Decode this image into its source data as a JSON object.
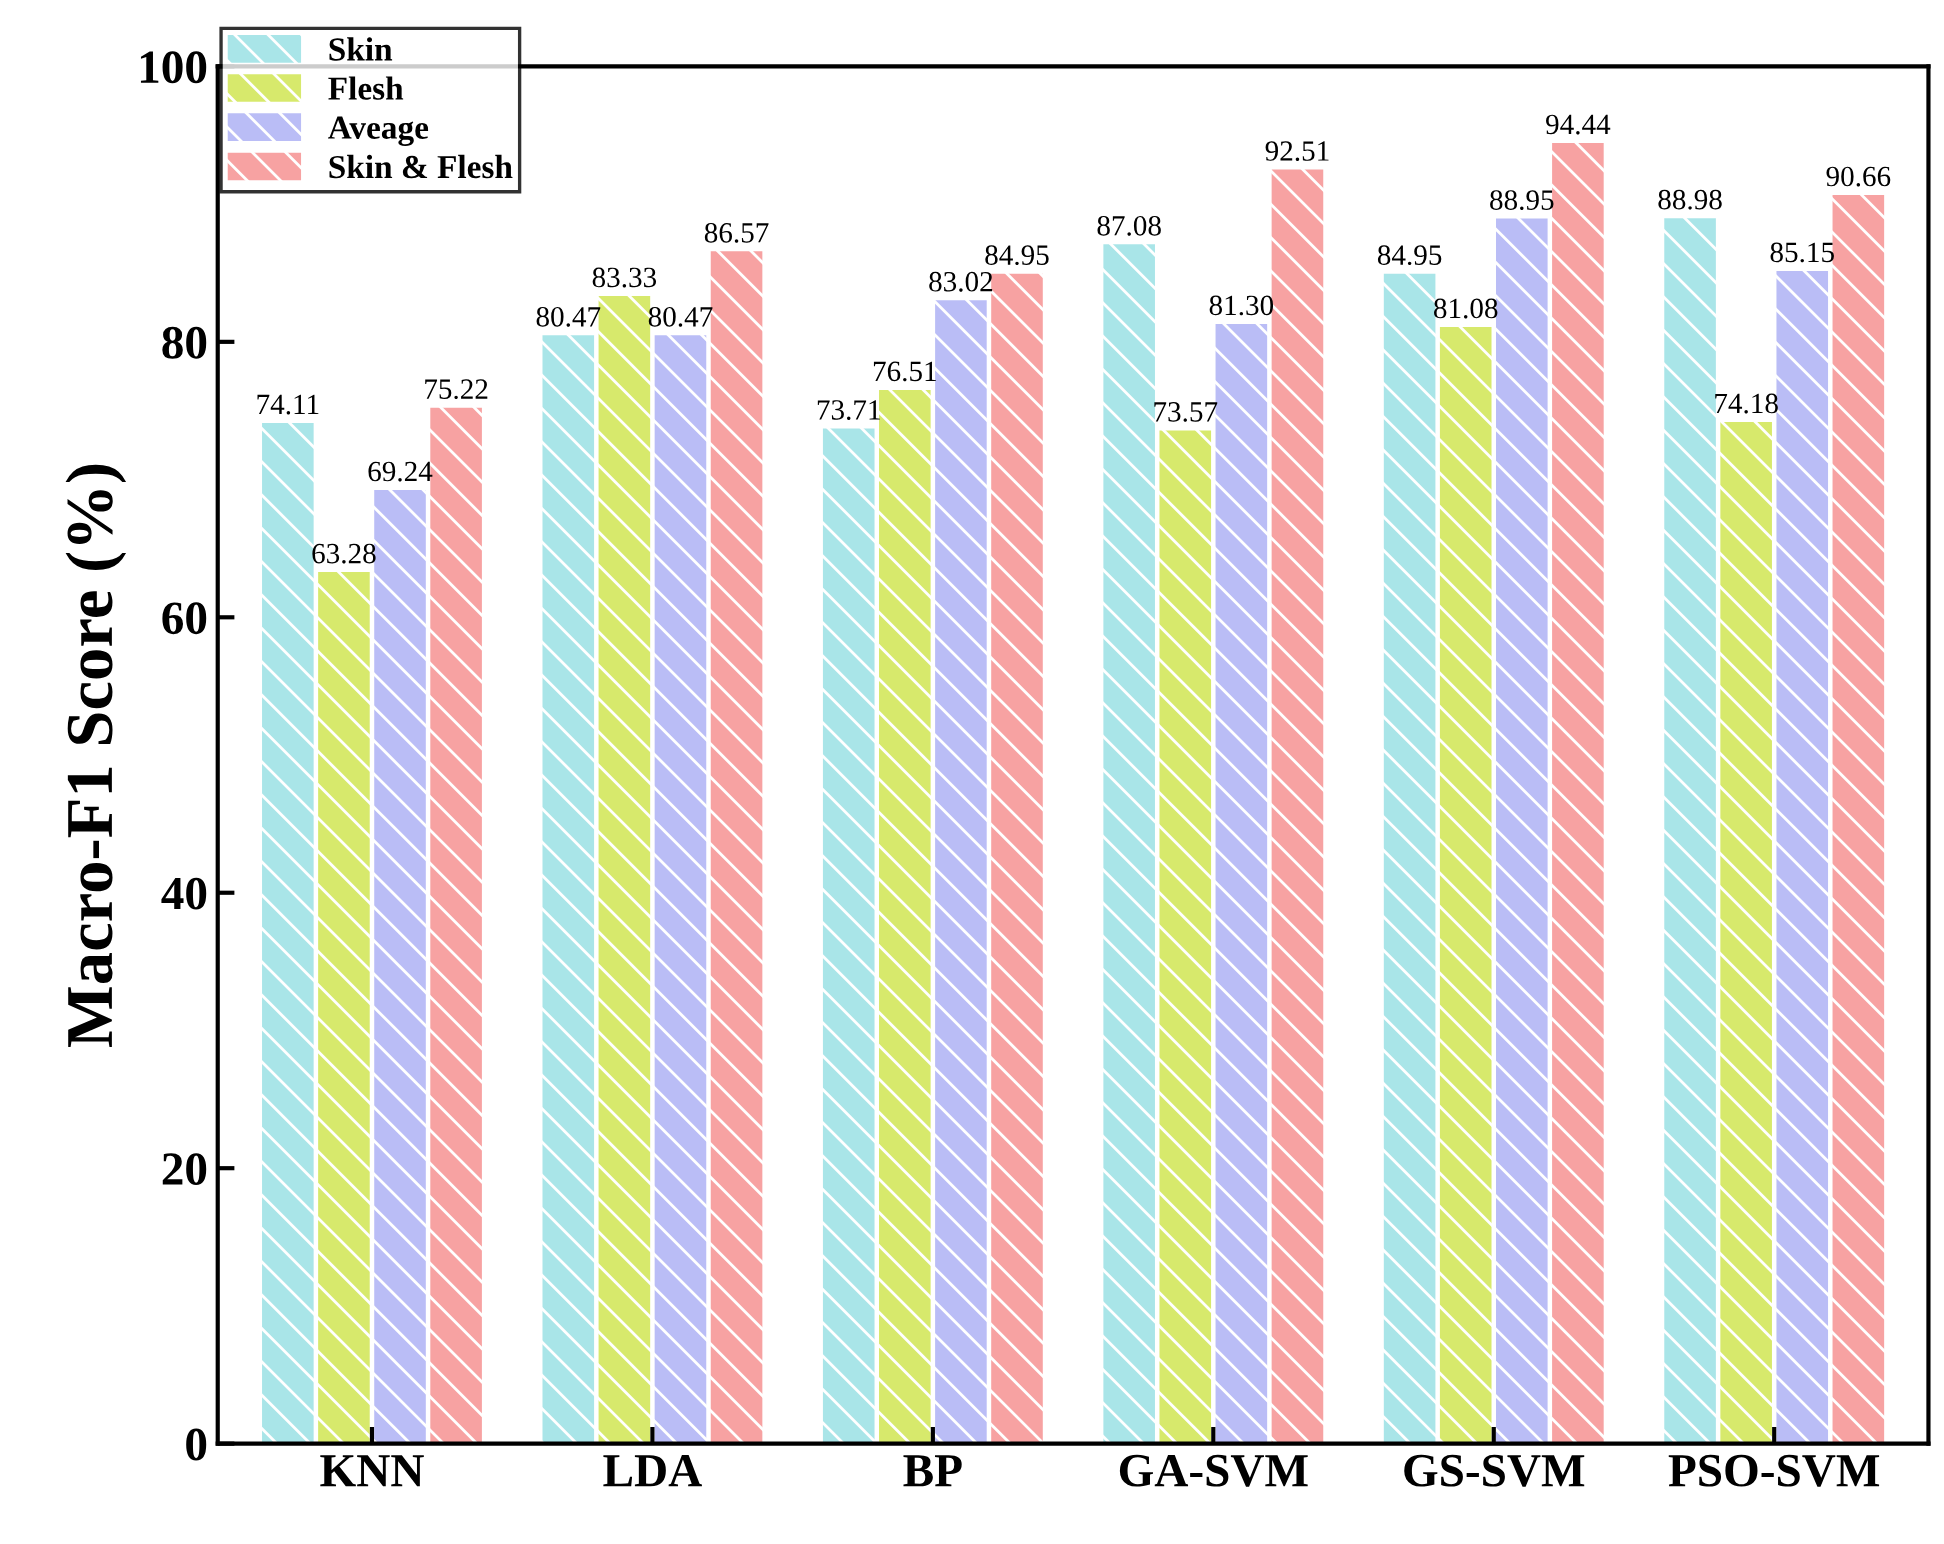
{
  "chart_data": {
    "type": "bar",
    "ylabel": "Macro-F1 Score (%)",
    "categories": [
      "KNN",
      "LDA",
      "BP",
      "GA-SVM",
      "GS-SVM",
      "PSO-SVM"
    ],
    "series": [
      {
        "name": "Skin",
        "color": "#a9e5e8",
        "values": [
          74.11,
          80.47,
          73.71,
          87.08,
          84.95,
          88.98
        ],
        "value_labels": [
          "74.11",
          "80.47",
          "73.71",
          "87.08",
          "84.95",
          "88.98"
        ]
      },
      {
        "name": "Flesh",
        "color": "#d7e96c",
        "values": [
          63.28,
          83.33,
          76.51,
          73.57,
          81.08,
          74.18
        ],
        "value_labels": [
          "63.28",
          "83.33",
          "76.51",
          "73.57",
          "81.08",
          "74.18"
        ]
      },
      {
        "name": "Aveage",
        "color": "#babdf6",
        "values": [
          69.24,
          80.47,
          83.02,
          81.3,
          88.95,
          85.15
        ],
        "value_labels": [
          "69.24",
          "80.47",
          "83.02",
          "81.30",
          "88.95",
          "85.15"
        ]
      },
      {
        "name": "Skin & Flesh",
        "color": "#f7a2a2",
        "values": [
          75.22,
          86.57,
          84.95,
          92.51,
          94.44,
          90.66
        ],
        "value_labels": [
          "75.22",
          "86.57",
          "84.95",
          "92.51",
          "94.44",
          "90.66"
        ]
      }
    ],
    "ylim": [
      0,
      100
    ],
    "yticks": [
      0,
      20,
      40,
      60,
      80,
      100
    ],
    "grid": false,
    "legend": "top left"
  }
}
